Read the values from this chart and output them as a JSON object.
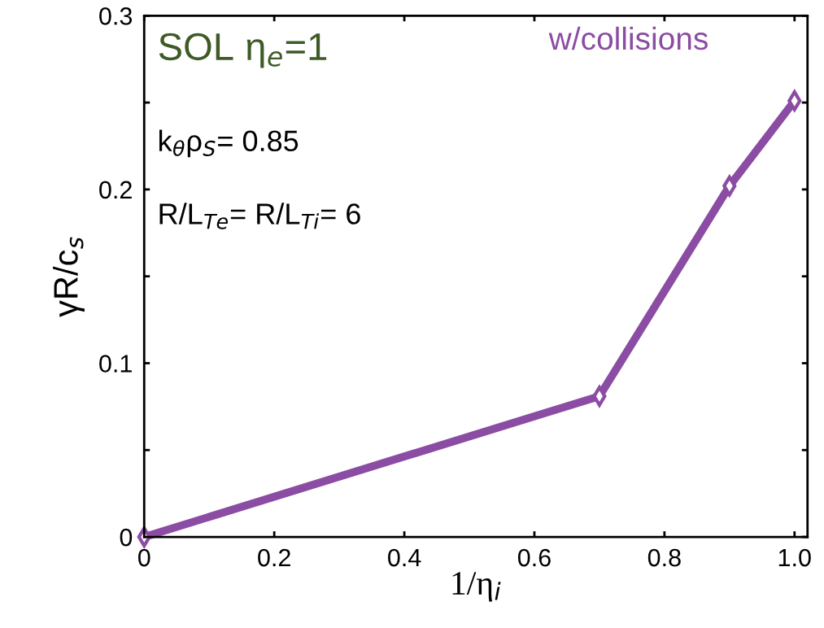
{
  "chart_data": {
    "type": "line",
    "x": [
      0,
      0.7,
      0.9,
      1.0
    ],
    "series": [
      {
        "name": "w/collisions",
        "color": "#8b4ca3",
        "values": [
          0,
          0.081,
          0.202,
          0.251
        ]
      }
    ],
    "xlabel": "1/η$_{i}$",
    "ylabel": "γR/c$_{s}$",
    "annotations": [
      "SOL η$_{e}$=1",
      "k$_{θ}$ρ$_{S}$= 0.85",
      "R/L$_{Te}$= R/L$_{Ti}$= 6"
    ],
    "xlim": [
      0,
      1.02
    ],
    "ylim": [
      0,
      0.3
    ],
    "xticks": [
      0,
      0.2,
      0.4,
      0.6,
      0.8,
      {
        "value": 1.0,
        "label": "1.0"
      }
    ],
    "yticks": [
      0,
      {
        "value": 0.05,
        "label": null
      },
      0.1,
      {
        "value": 0.15,
        "label": null
      },
      0.2,
      {
        "value": 0.25,
        "label": null
      },
      0.3
    ],
    "marker": "diamond",
    "line_style": "solid",
    "grid": false,
    "legend": false
  }
}
